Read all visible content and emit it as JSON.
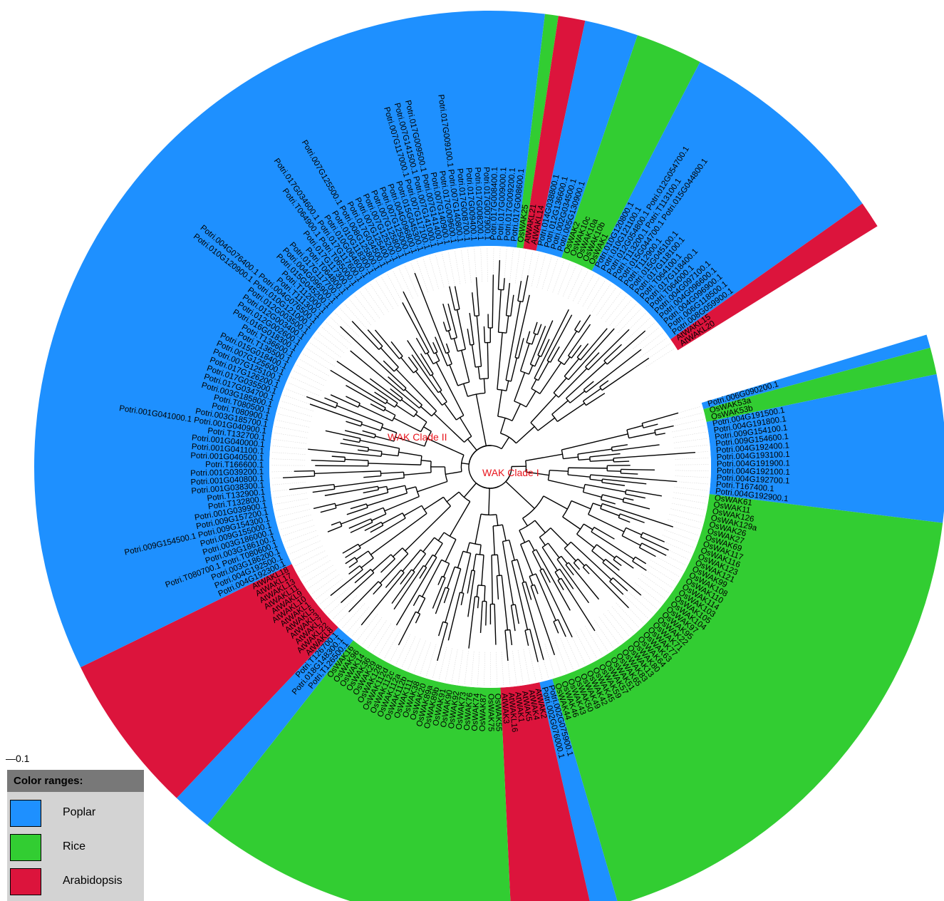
{
  "scale_label": "0.1",
  "legend": {
    "title": "Color ranges:",
    "items": [
      {
        "label": "Poplar",
        "color": "#1e90ff"
      },
      {
        "label": "Rice",
        "color": "#32cd32"
      },
      {
        "label": "Arabidopsis",
        "color": "#dc143c"
      }
    ]
  },
  "clades": [
    "WAK Clade I",
    "WAK Clade II"
  ],
  "leaves": [
    {
      "g": "P",
      "l": "Potri.006G090200.1"
    },
    {
      "g": "R",
      "l": "OsWAK53a"
    },
    {
      "g": "R",
      "l": "OsWAK53b"
    },
    {
      "g": "P",
      "l": "Potri.004G191500.1"
    },
    {
      "g": "P",
      "l": "Potri.004G191800.1"
    },
    {
      "g": "P",
      "l": "Potri.009G154100.1"
    },
    {
      "g": "P",
      "l": "Potri.009G154600.1"
    },
    {
      "g": "P",
      "l": "Potri.004G192400.1"
    },
    {
      "g": "P",
      "l": "Potri.004G193100.1"
    },
    {
      "g": "P",
      "l": "Potri.004G191900.1"
    },
    {
      "g": "P",
      "l": "Potri.004G192100.1"
    },
    {
      "g": "P",
      "l": "Potri.004G192700.1"
    },
    {
      "g": "P",
      "l": "Potri.T167400.1"
    },
    {
      "g": "P",
      "l": "Potri.004G192900.1"
    },
    {
      "g": "R",
      "l": "OsWAK61"
    },
    {
      "g": "R",
      "l": "OsWAK11"
    },
    {
      "g": "R",
      "l": "OsWAK126"
    },
    {
      "g": "R",
      "l": "OsWAK129a"
    },
    {
      "g": "R",
      "l": "OsWAK26"
    },
    {
      "g": "R",
      "l": "OsWAK27"
    },
    {
      "g": "R",
      "l": "OsWAK69"
    },
    {
      "g": "R",
      "l": "OsWAK117"
    },
    {
      "g": "R",
      "l": "OsWAK116"
    },
    {
      "g": "R",
      "l": "OsWAK123"
    },
    {
      "g": "R",
      "l": "OsWAK121"
    },
    {
      "g": "R",
      "l": "OsWAK99"
    },
    {
      "g": "R",
      "l": "OsWAK108"
    },
    {
      "g": "R",
      "l": "OsWAK110"
    },
    {
      "g": "R",
      "l": "OsWAK114"
    },
    {
      "g": "R",
      "l": "OsWAK103"
    },
    {
      "g": "R",
      "l": "OsWAK105"
    },
    {
      "g": "R",
      "l": "OsWAK104"
    },
    {
      "g": "R",
      "l": "OsWAK97"
    },
    {
      "g": "R",
      "l": "OsWAK95"
    },
    {
      "g": "R",
      "l": "OsWAK22"
    },
    {
      "g": "R",
      "l": "OsWAK71"
    },
    {
      "g": "R",
      "l": "OsWAK77"
    },
    {
      "g": "R",
      "l": "OsWAK63"
    },
    {
      "g": "R",
      "l": "OsWAK64"
    },
    {
      "g": "R",
      "l": "OsWAK80"
    },
    {
      "g": "R",
      "l": "OsWAK13"
    },
    {
      "g": "R",
      "l": "OsWAK83"
    },
    {
      "g": "R",
      "l": "OsWAK65"
    },
    {
      "g": "R",
      "l": "OsWAK51"
    },
    {
      "g": "R",
      "l": "OsWAK57"
    },
    {
      "g": "R",
      "l": "OsWAK59"
    },
    {
      "g": "R",
      "l": "OsWAK45"
    },
    {
      "g": "R",
      "l": "OsWAK42"
    },
    {
      "g": "R",
      "l": "OsWAK49"
    },
    {
      "g": "R",
      "l": "OsWAK50"
    },
    {
      "g": "R",
      "l": "OsWAK43"
    },
    {
      "g": "R",
      "l": "OsWAK46"
    },
    {
      "g": "R",
      "l": "OsWAK44"
    },
    {
      "g": "P",
      "l": "Potri.002G075900.1"
    },
    {
      "g": "P",
      "l": "Potri.002G076000.1"
    },
    {
      "g": "A",
      "l": "AtWAK2"
    },
    {
      "g": "A",
      "l": "AtWAK4"
    },
    {
      "g": "A",
      "l": "AtWAK5"
    },
    {
      "g": "A",
      "l": "AtWAK1"
    },
    {
      "g": "A",
      "l": "AtWAKL16"
    },
    {
      "g": "A",
      "l": "AtWAK3"
    },
    {
      "g": "R",
      "l": "OsWAK55"
    },
    {
      "g": "R",
      "l": "OsWAK75"
    },
    {
      "g": "R",
      "l": "OsWAK87"
    },
    {
      "g": "R",
      "l": "OsWAK74"
    },
    {
      "g": "R",
      "l": "OsWAK76"
    },
    {
      "g": "R",
      "l": "OsWAK73"
    },
    {
      "g": "R",
      "l": "OsWAK92"
    },
    {
      "g": "R",
      "l": "OsWAK90"
    },
    {
      "g": "R",
      "l": "OsWAK91"
    },
    {
      "g": "R",
      "l": "OsWAK89b"
    },
    {
      "g": "R",
      "l": "OsWAK89a"
    },
    {
      "g": "R",
      "l": "OsWAK20"
    },
    {
      "g": "R",
      "l": "OsWAK38"
    },
    {
      "g": "R",
      "l": "OsWAK111"
    },
    {
      "g": "R",
      "l": "OsWAK112b"
    },
    {
      "g": "R",
      "l": "OsWAK112a"
    },
    {
      "g": "R",
      "l": "OsWAK112c"
    },
    {
      "g": "R",
      "l": "OsWAK112d"
    },
    {
      "g": "R",
      "l": "OsWAK128"
    },
    {
      "g": "R",
      "l": "OsWAK29"
    },
    {
      "g": "R",
      "l": "OsWAK36"
    },
    {
      "g": "R",
      "l": "OsWAK14"
    },
    {
      "g": "R",
      "l": "OsWAK96"
    },
    {
      "g": "R",
      "l": "OsWAK16"
    },
    {
      "g": "P",
      "l": "Potri.T126500.1"
    },
    {
      "g": "P",
      "l": "Potri.018G148300.1"
    },
    {
      "g": "P",
      "l": "Potri.T126700.1"
    },
    {
      "g": "A",
      "l": "AtWAKL8"
    },
    {
      "g": "A",
      "l": "AtWAKL22"
    },
    {
      "g": "A",
      "l": "AtWAKL7"
    },
    {
      "g": "A",
      "l": "AtWAKL3"
    },
    {
      "g": "A",
      "l": "AtWAKL5"
    },
    {
      "g": "A",
      "l": "AtWAKL1"
    },
    {
      "g": "A",
      "l": "AtWAKL10"
    },
    {
      "g": "A",
      "l": "AtWAKL9"
    },
    {
      "g": "A",
      "l": "AtWAKL11"
    },
    {
      "g": "A",
      "l": "AtWAKL13"
    },
    {
      "g": "A",
      "l": "AtWAKL17"
    },
    {
      "g": "A",
      "l": "AtWAKL18"
    },
    {
      "g": "P",
      "l": "Potri.004G192300.1"
    },
    {
      "g": "P",
      "l": "Potri.004G192500.1"
    },
    {
      "g": "P",
      "l": "Potri.003G186200.1"
    },
    {
      "g": "P",
      "l": "Potri.T080700.1 Potri.T080600.1"
    },
    {
      "g": "P",
      "l": "Potri.003G186100.1"
    },
    {
      "g": "P",
      "l": "Potri.003G186000.1"
    },
    {
      "g": "P",
      "l": "Potri.009G155000.1"
    },
    {
      "g": "P",
      "l": "Potri.009G154500.1 Potri.009G154300.1"
    },
    {
      "g": "P",
      "l": "Potri.009G157200.1"
    },
    {
      "g": "P",
      "l": "Potri.001G039900.1"
    },
    {
      "g": "P",
      "l": "Potri.T132800.1"
    },
    {
      "g": "P",
      "l": "Potri.T132900.1"
    },
    {
      "g": "P",
      "l": "Potri.001G038300.1"
    },
    {
      "g": "P",
      "l": "Potri.001G040800.1"
    },
    {
      "g": "P",
      "l": "Potri.001G039200.1"
    },
    {
      "g": "P",
      "l": "Potri.T166600.1"
    },
    {
      "g": "P",
      "l": "Potri.001G040500.1"
    },
    {
      "g": "P",
      "l": "Potri.001G041100.1"
    },
    {
      "g": "P",
      "l": "Potri.001G040000.1"
    },
    {
      "g": "P",
      "l": "Potri.T132700.1"
    },
    {
      "g": "P",
      "l": "Potri.001G041000.1 Potri.001G040900.1"
    },
    {
      "g": "P",
      "l": "Potri.003G185700.1"
    },
    {
      "g": "P",
      "l": "Potri.T080900.1"
    },
    {
      "g": "P",
      "l": "Potri.T080500.1"
    },
    {
      "g": "P",
      "l": "Potri.003G185800.1"
    },
    {
      "g": "P",
      "l": "Potri.017G034700.1"
    },
    {
      "g": "P",
      "l": "Potri.017G035500.1"
    },
    {
      "g": "P",
      "l": "Potri.017G126200.1"
    },
    {
      "g": "P",
      "l": "Potri.007G125100.1"
    },
    {
      "g": "P",
      "l": "Potri.007G125600.1"
    },
    {
      "g": "P",
      "l": "Potri.015G018400.1"
    },
    {
      "g": "P",
      "l": "Potri.T136500.1"
    },
    {
      "g": "P",
      "l": "Potri.T136600.1"
    },
    {
      "g": "P",
      "l": "Potri.016G018300.1"
    },
    {
      "g": "P",
      "l": "Potri.012G002600.1"
    },
    {
      "g": "P",
      "l": "Potri.012G003400.1"
    },
    {
      "g": "P",
      "l": "Potri.012G003500.1"
    },
    {
      "g": "P",
      "l": "Potri.010G120900.1 Potri.010G121000.1"
    },
    {
      "g": "P",
      "l": "Potri.004G076400.1 Potri.004G076500.1"
    },
    {
      "g": "P",
      "l": "Potri.T111300.1"
    },
    {
      "g": "P",
      "l": "Potri.T112000.1"
    },
    {
      "g": "P",
      "l": "Potri.015G045200.1"
    },
    {
      "g": "P",
      "l": "Potri.004G096900.1"
    },
    {
      "g": "P",
      "l": "Potri.017G117700.1"
    },
    {
      "g": "P",
      "l": "Potri.T064800.1"
    },
    {
      "g": "P",
      "l": "Potri.017G117300.1"
    },
    {
      "g": "P",
      "l": "Potri.T064900.1 Potri.T065000.1"
    },
    {
      "g": "P",
      "l": "Potri.017G034600.1 Potri.017G117600.1"
    },
    {
      "g": "P",
      "l": "Potri.010G064600.1"
    },
    {
      "g": "P",
      "l": "Potri.010G118300.1"
    },
    {
      "g": "P",
      "l": "Potri.007G125500.1 Potri.008G125800.1"
    },
    {
      "g": "P",
      "l": "Potri.017G034500.1"
    },
    {
      "g": "P",
      "l": "Potri.007G125400.1"
    },
    {
      "g": "P",
      "l": "Potri.007G125200.1"
    },
    {
      "g": "P",
      "l": "Potri.007G125800.1"
    },
    {
      "g": "P",
      "l": "Potri.007G125000.1"
    },
    {
      "g": "P",
      "l": "Potri.004G096800.1"
    },
    {
      "g": "P",
      "l": "Potri.015G045300.1"
    },
    {
      "g": "P",
      "l": "Potri.007G117000.1 Potri.007G117100.1"
    },
    {
      "g": "P",
      "l": "Potri.007G141500.1 Potri.007G141000.1"
    },
    {
      "g": "P",
      "l": "Potri.017G009500.1 Potri.007G141400.1"
    },
    {
      "g": "P",
      "l": "Potri.007G140900.1"
    },
    {
      "g": "P",
      "l": "Potri.017G009600.1"
    },
    {
      "g": "P",
      "l": "Potri.017G009100.1 Potri.007G140800.1"
    },
    {
      "g": "P",
      "l": "Potri.017G008700.1"
    },
    {
      "g": "P",
      "l": "Potri.017G009400.1"
    },
    {
      "g": "P",
      "l": "Potri.017G008200.1"
    },
    {
      "g": "P",
      "l": "Potri.017G007900.1"
    },
    {
      "g": "P",
      "l": "Potri.017G008400.1"
    },
    {
      "g": "P",
      "l": "Potri.017G009000.1"
    },
    {
      "g": "P",
      "l": "Potri.017G009200.1"
    },
    {
      "g": "P",
      "l": "Potri.017G008600.1"
    },
    {
      "g": "R",
      "l": "OsWAK25"
    },
    {
      "g": "A",
      "l": "AtWAKL21"
    },
    {
      "g": "A",
      "l": "AtWAKL14"
    },
    {
      "g": "P",
      "l": "Potri.014G038800.1"
    },
    {
      "g": "P",
      "l": "Potri.012G136600.1"
    },
    {
      "g": "P",
      "l": "Potri.002G034500.1"
    },
    {
      "g": "P",
      "l": "Potri.005G130900.1"
    },
    {
      "g": "R",
      "l": "OsWAK2"
    },
    {
      "g": "R",
      "l": "OsWAK10c"
    },
    {
      "g": "R",
      "l": "OsWAK10a"
    },
    {
      "g": "R",
      "l": "OsWAK10b"
    },
    {
      "g": "R",
      "l": "OsWAK1"
    },
    {
      "g": "P",
      "l": "Potri.010G120800.1"
    },
    {
      "g": "P",
      "l": "Potri.010G121100.1"
    },
    {
      "g": "P",
      "l": "Potri.012G054800.1 Potri.012G054700.1"
    },
    {
      "g": "P",
      "l": "Potri.T113200.1 Potri.T113100.1"
    },
    {
      "g": "P",
      "l": "Potri.015G044700.1 Potri.015G044800.1"
    },
    {
      "g": "P",
      "l": "Potri.T112900.1"
    },
    {
      "g": "P",
      "l": "Potri.015G045100.1"
    },
    {
      "g": "P",
      "l": "Potri.017G118100.1"
    },
    {
      "g": "P",
      "l": "Potri.T064100.1"
    },
    {
      "g": "P",
      "l": "Potri.017G118400.1"
    },
    {
      "g": "P",
      "l": "Potri.T064000.1"
    },
    {
      "g": "P",
      "l": "Potri.004G097100.1"
    },
    {
      "g": "P",
      "l": "Potri.004G096600.1"
    },
    {
      "g": "P",
      "l": "Potri.004G096900.1"
    },
    {
      "g": "P",
      "l": "Potri.006G118500.1"
    },
    {
      "g": "P",
      "l": "Potri.008G059900.1"
    },
    {
      "g": "A",
      "l": "AtWAKL15"
    },
    {
      "g": "A",
      "l": "AtWAKL20"
    }
  ]
}
